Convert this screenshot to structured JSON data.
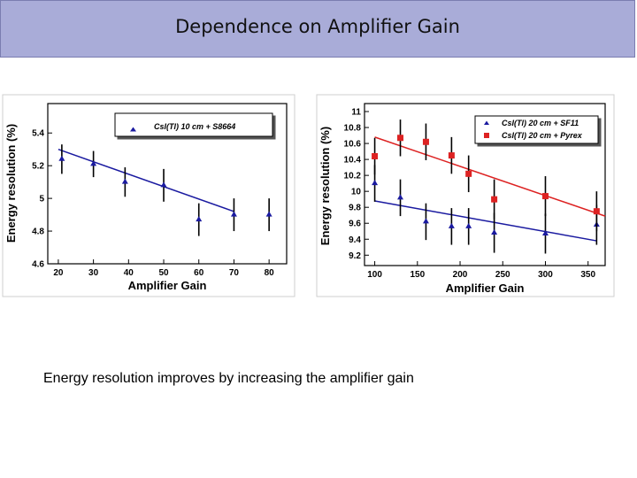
{
  "slide": {
    "title": "Dependence on Amplifier Gain",
    "caption": "Energy resolution improves by increasing the amplifier gain",
    "title_bar_color": "#a9acd8"
  },
  "chart_data": [
    {
      "type": "scatter",
      "title": "",
      "xlabel": "Amplifier Gain",
      "ylabel": "Energy resolution (%)",
      "xlim": [
        17,
        85
      ],
      "ylim": [
        4.6,
        5.58
      ],
      "xticks": [
        20,
        30,
        40,
        50,
        60,
        70,
        80
      ],
      "yticks": [
        4.6,
        4.8,
        5,
        5.2,
        5.4
      ],
      "legend_position": "top-right",
      "series": [
        {
          "name": "CsI(Tl) 10 cm + S8664",
          "color": "#1a1aa0",
          "marker": "triangle",
          "points": [
            {
              "x": 21,
              "y": 5.24,
              "err": 0.09
            },
            {
              "x": 30,
              "y": 5.21,
              "err": 0.08
            },
            {
              "x": 39,
              "y": 5.1,
              "err": 0.09
            },
            {
              "x": 50,
              "y": 5.08,
              "err": 0.1
            },
            {
              "x": 60,
              "y": 4.87,
              "err": 0.1
            },
            {
              "x": 70,
              "y": 4.9,
              "err": 0.1
            },
            {
              "x": 80,
              "y": 4.9,
              "err": 0.1
            }
          ],
          "fit": {
            "x1": 20,
            "y1": 5.3,
            "x2": 70,
            "y2": 4.92
          }
        }
      ]
    },
    {
      "type": "scatter",
      "title": "",
      "xlabel": "Amplifier Gain",
      "ylabel": "Energy resolution (%)",
      "xlim": [
        88,
        370
      ],
      "ylim": [
        9.07,
        11.1
      ],
      "xticks": [
        100,
        150,
        200,
        250,
        300,
        350
      ],
      "yticks": [
        9.2,
        9.4,
        9.6,
        9.8,
        10,
        10.2,
        10.4,
        10.6,
        10.8,
        11
      ],
      "legend_position": "top-right",
      "series": [
        {
          "name": "CsI(Tl) 20 cm + SF11",
          "color": "#1a1aa0",
          "marker": "triangle",
          "points": [
            {
              "x": 100,
              "y": 10.1,
              "err": 0.23
            },
            {
              "x": 130,
              "y": 9.92,
              "err": 0.23
            },
            {
              "x": 160,
              "y": 9.62,
              "err": 0.23
            },
            {
              "x": 190,
              "y": 9.56,
              "err": 0.23
            },
            {
              "x": 210,
              "y": 9.56,
              "err": 0.23
            },
            {
              "x": 240,
              "y": 9.48,
              "err": 0.25
            },
            {
              "x": 300,
              "y": 9.47,
              "err": 0.25
            },
            {
              "x": 360,
              "y": 9.58,
              "err": 0.25
            }
          ],
          "fit": {
            "x1": 100,
            "y1": 9.88,
            "x2": 360,
            "y2": 9.38
          }
        },
        {
          "name": "CsI(Tl) 20 cm + Pyrex",
          "color": "#dd2222",
          "marker": "square",
          "points": [
            {
              "x": 100,
              "y": 10.44,
              "err": 0.23
            },
            {
              "x": 130,
              "y": 10.67,
              "err": 0.23
            },
            {
              "x": 160,
              "y": 10.62,
              "err": 0.23
            },
            {
              "x": 190,
              "y": 10.45,
              "err": 0.23
            },
            {
              "x": 210,
              "y": 10.22,
              "err": 0.23
            },
            {
              "x": 240,
              "y": 9.9,
              "err": 0.25
            },
            {
              "x": 300,
              "y": 9.94,
              "err": 0.25
            },
            {
              "x": 360,
              "y": 9.75,
              "err": 0.25
            }
          ],
          "fit": {
            "x1": 100,
            "y1": 10.68,
            "x2": 370,
            "y2": 9.69
          }
        }
      ]
    }
  ]
}
